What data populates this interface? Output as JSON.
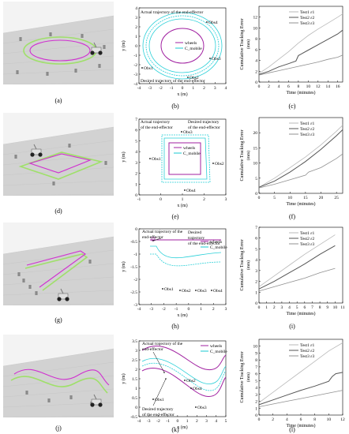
{
  "captions": [
    "(a)",
    "(b)",
    "(c)",
    "(d)",
    "(e)",
    "(f)",
    "(g)",
    "(h)",
    "(i)",
    "(j)",
    "(k)",
    "(l)"
  ],
  "colors": {
    "wheels": "#a020a0",
    "cmobile": "#18c8d0",
    "ee": "#2ad0d8",
    "test1": "#b8b8b8",
    "test2": "#555555",
    "test3": "#909090",
    "sim_green": "#9fe06a",
    "sim_magenta": "#d030d0"
  },
  "trajectory_plots": [
    {
      "id": "b",
      "xlabel": "x (m)",
      "ylabel": "y (m)",
      "xticks": [
        "-4",
        "-3",
        "-2",
        "-1",
        "0",
        "1",
        "2",
        "3",
        "4"
      ],
      "yticks": [
        "4",
        "3",
        "2",
        "1",
        "0",
        "-1",
        "-2",
        "-3",
        "-4"
      ],
      "legend": [
        "wheels",
        "C_mobile"
      ],
      "annotations": [
        "Actual trajectory of the end-effector",
        "Desired trajectory of the end-effector"
      ],
      "obstacles": [
        "Obs1",
        "Obs2",
        "Obs3",
        "Obs4"
      ]
    },
    {
      "id": "e",
      "xlabel": "x (m)",
      "ylabel": "y (m)",
      "xticks": [
        "-1",
        "0",
        "1",
        "2",
        "3"
      ],
      "yticks": [
        "7",
        "6",
        "5",
        "4",
        "3",
        "2",
        "1",
        "0"
      ],
      "legend": [
        "wheels",
        "C_mobile"
      ],
      "annotations": [
        "Actual trajectory of the end-effector",
        "Desired trajectory of the end-effector"
      ],
      "obstacles": [
        "Obs1",
        "Obs2",
        "Obs3",
        "Obs4"
      ]
    },
    {
      "id": "h",
      "xlabel": "x (m)",
      "ylabel": "y (m)",
      "xticks": [
        "-4",
        "-3",
        "-2",
        "-1",
        "0",
        "1",
        "2",
        "3"
      ],
      "yticks": [
        "0",
        "-0.5",
        "-1",
        "-1.5",
        "-2",
        "-2.5",
        "-3"
      ],
      "legend": [
        "wheels",
        "C_mobile"
      ],
      "annotations": [
        "Actual trajectory of the end-effector",
        "Desired trajectory of the end-effector"
      ],
      "obstacles": [
        "Obs1",
        "Obs2",
        "Obs3",
        "Obs4"
      ]
    },
    {
      "id": "k",
      "xlabel": "x (m)",
      "ylabel": "y (m)",
      "xticks": [
        "-4",
        "-3",
        "-2",
        "-1",
        "0",
        "1",
        "2",
        "3",
        "4",
        "5"
      ],
      "yticks": [
        "3.5",
        "3",
        "2.5",
        "2",
        "1.5",
        "1",
        "0.5",
        "0",
        "-0.5"
      ],
      "legend": [
        "wheels",
        "C_mobile"
      ],
      "annotations": [
        "Actual trajectory of the end-effector",
        "Desired trajectory of the end-effector"
      ],
      "obstacles": [
        "Obs1",
        "Obs2",
        "Obs3",
        "Obs4"
      ]
    }
  ],
  "chart_data": [
    {
      "type": "line",
      "id": "c",
      "xlabel": "Time (minutes)",
      "ylabel": "Cumulative Tracking Error",
      "yunit": "(mm)",
      "xlim": [
        0,
        17
      ],
      "ylim": [
        0,
        14
      ],
      "xticks": [
        0,
        2,
        4,
        6,
        8,
        10,
        12,
        14,
        16
      ],
      "yticks": [
        0,
        2,
        4,
        6,
        8,
        10,
        12
      ],
      "series": [
        {
          "name": "Test1 ε1",
          "x": [
            0,
            2,
            4,
            6,
            8,
            10,
            12,
            14,
            16,
            17
          ],
          "values": [
            1.6,
            2.8,
            4.2,
            5.6,
            7.2,
            8.6,
            9.8,
            10.9,
            12.0,
            12.6
          ]
        },
        {
          "name": "Test2 ε2",
          "x": [
            0,
            2,
            4,
            6,
            7.5,
            8,
            10,
            12,
            14,
            16,
            17
          ],
          "values": [
            1.4,
            2.0,
            2.8,
            3.4,
            3.9,
            4.9,
            5.9,
            6.9,
            7.9,
            8.9,
            9.6
          ]
        },
        {
          "name": "Test3 ε3",
          "x": [
            0,
            2,
            4,
            6,
            8,
            10,
            12,
            14,
            16,
            17
          ],
          "values": [
            1.3,
            1.7,
            2.1,
            2.5,
            2.9,
            3.3,
            3.7,
            4.2,
            4.6,
            5.0
          ]
        }
      ]
    },
    {
      "type": "line",
      "id": "f",
      "xlabel": "Time (minutes)",
      "ylabel": "Cumulative Tracking Error",
      "yunit": "(mm)",
      "xlim": [
        0,
        27
      ],
      "ylim": [
        0,
        25
      ],
      "xticks": [
        0,
        5,
        10,
        15,
        20,
        25
      ],
      "yticks": [
        0,
        5,
        10,
        15,
        20
      ],
      "series": [
        {
          "name": "Test1 ε1",
          "x": [
            0,
            5,
            10,
            15,
            20,
            25,
            27
          ],
          "values": [
            2.0,
            5.0,
            8.5,
            12.0,
            16.0,
            20.5,
            22.5
          ]
        },
        {
          "name": "Test2 ε2",
          "x": [
            0,
            5,
            10,
            15,
            20,
            25,
            27
          ],
          "values": [
            2.0,
            4.0,
            7.0,
            10.5,
            14.5,
            19.0,
            21.0
          ]
        },
        {
          "name": "Test3 ε3",
          "x": [
            0,
            5,
            10,
            15,
            16,
            20,
            25,
            27
          ],
          "values": [
            1.8,
            3.0,
            4.5,
            6.0,
            7.0,
            8.5,
            11.5,
            13.0
          ]
        }
      ]
    },
    {
      "type": "line",
      "id": "i",
      "xlabel": "Time (minutes)",
      "ylabel": "Cumulative Tracking Error",
      "yunit": "(mm)",
      "xlim": [
        0,
        11
      ],
      "ylim": [
        0,
        7
      ],
      "xticks": [
        0,
        1,
        2,
        3,
        4,
        5,
        6,
        7,
        8,
        9,
        10,
        11
      ],
      "yticks": [
        0,
        1,
        2,
        3,
        4,
        5,
        6,
        7
      ],
      "series": [
        {
          "name": "Test1 ε1",
          "x": [
            0,
            2,
            4,
            6,
            8,
            10
          ],
          "values": [
            1.5,
            2.5,
            3.5,
            4.5,
            5.4,
            6.3
          ]
        },
        {
          "name": "Test2 ε2",
          "x": [
            0,
            2,
            4,
            6,
            8,
            10
          ],
          "values": [
            1.3,
            2.0,
            2.8,
            3.6,
            4.5,
            5.3
          ]
        },
        {
          "name": "Test3 ε3",
          "x": [
            0,
            2,
            4,
            6,
            8,
            10
          ],
          "values": [
            1.1,
            1.5,
            1.9,
            2.3,
            2.8,
            3.2
          ]
        }
      ]
    },
    {
      "type": "line",
      "id": "l",
      "xlabel": "Time (minutes)",
      "ylabel": "Cumulative Tracking Error",
      "yunit": "(mm)",
      "xlim": [
        0,
        12
      ],
      "ylim": [
        0,
        11
      ],
      "xticks": [
        0,
        2,
        4,
        6,
        8,
        10,
        12
      ],
      "yticks": [
        0,
        1,
        2,
        3,
        4,
        5,
        6,
        7,
        8,
        9,
        10
      ],
      "series": [
        {
          "name": "Test1 ε1",
          "x": [
            0,
            2,
            4,
            6,
            8,
            10,
            12
          ],
          "values": [
            1.8,
            3.3,
            4.8,
            6.3,
            7.8,
            9.3,
            10.5
          ]
        },
        {
          "name": "Test2 ε2",
          "x": [
            0,
            2,
            4,
            6,
            8,
            10,
            10.5,
            11,
            12
          ],
          "values": [
            1.5,
            2.2,
            2.9,
            3.6,
            4.2,
            4.9,
            5.6,
            6.0,
            6.2
          ]
        },
        {
          "name": "Test3 ε3",
          "x": [
            0,
            2,
            4,
            6,
            8,
            10,
            12
          ],
          "values": [
            1.2,
            1.6,
            2.0,
            2.4,
            2.8,
            3.2,
            3.6
          ]
        }
      ]
    }
  ]
}
